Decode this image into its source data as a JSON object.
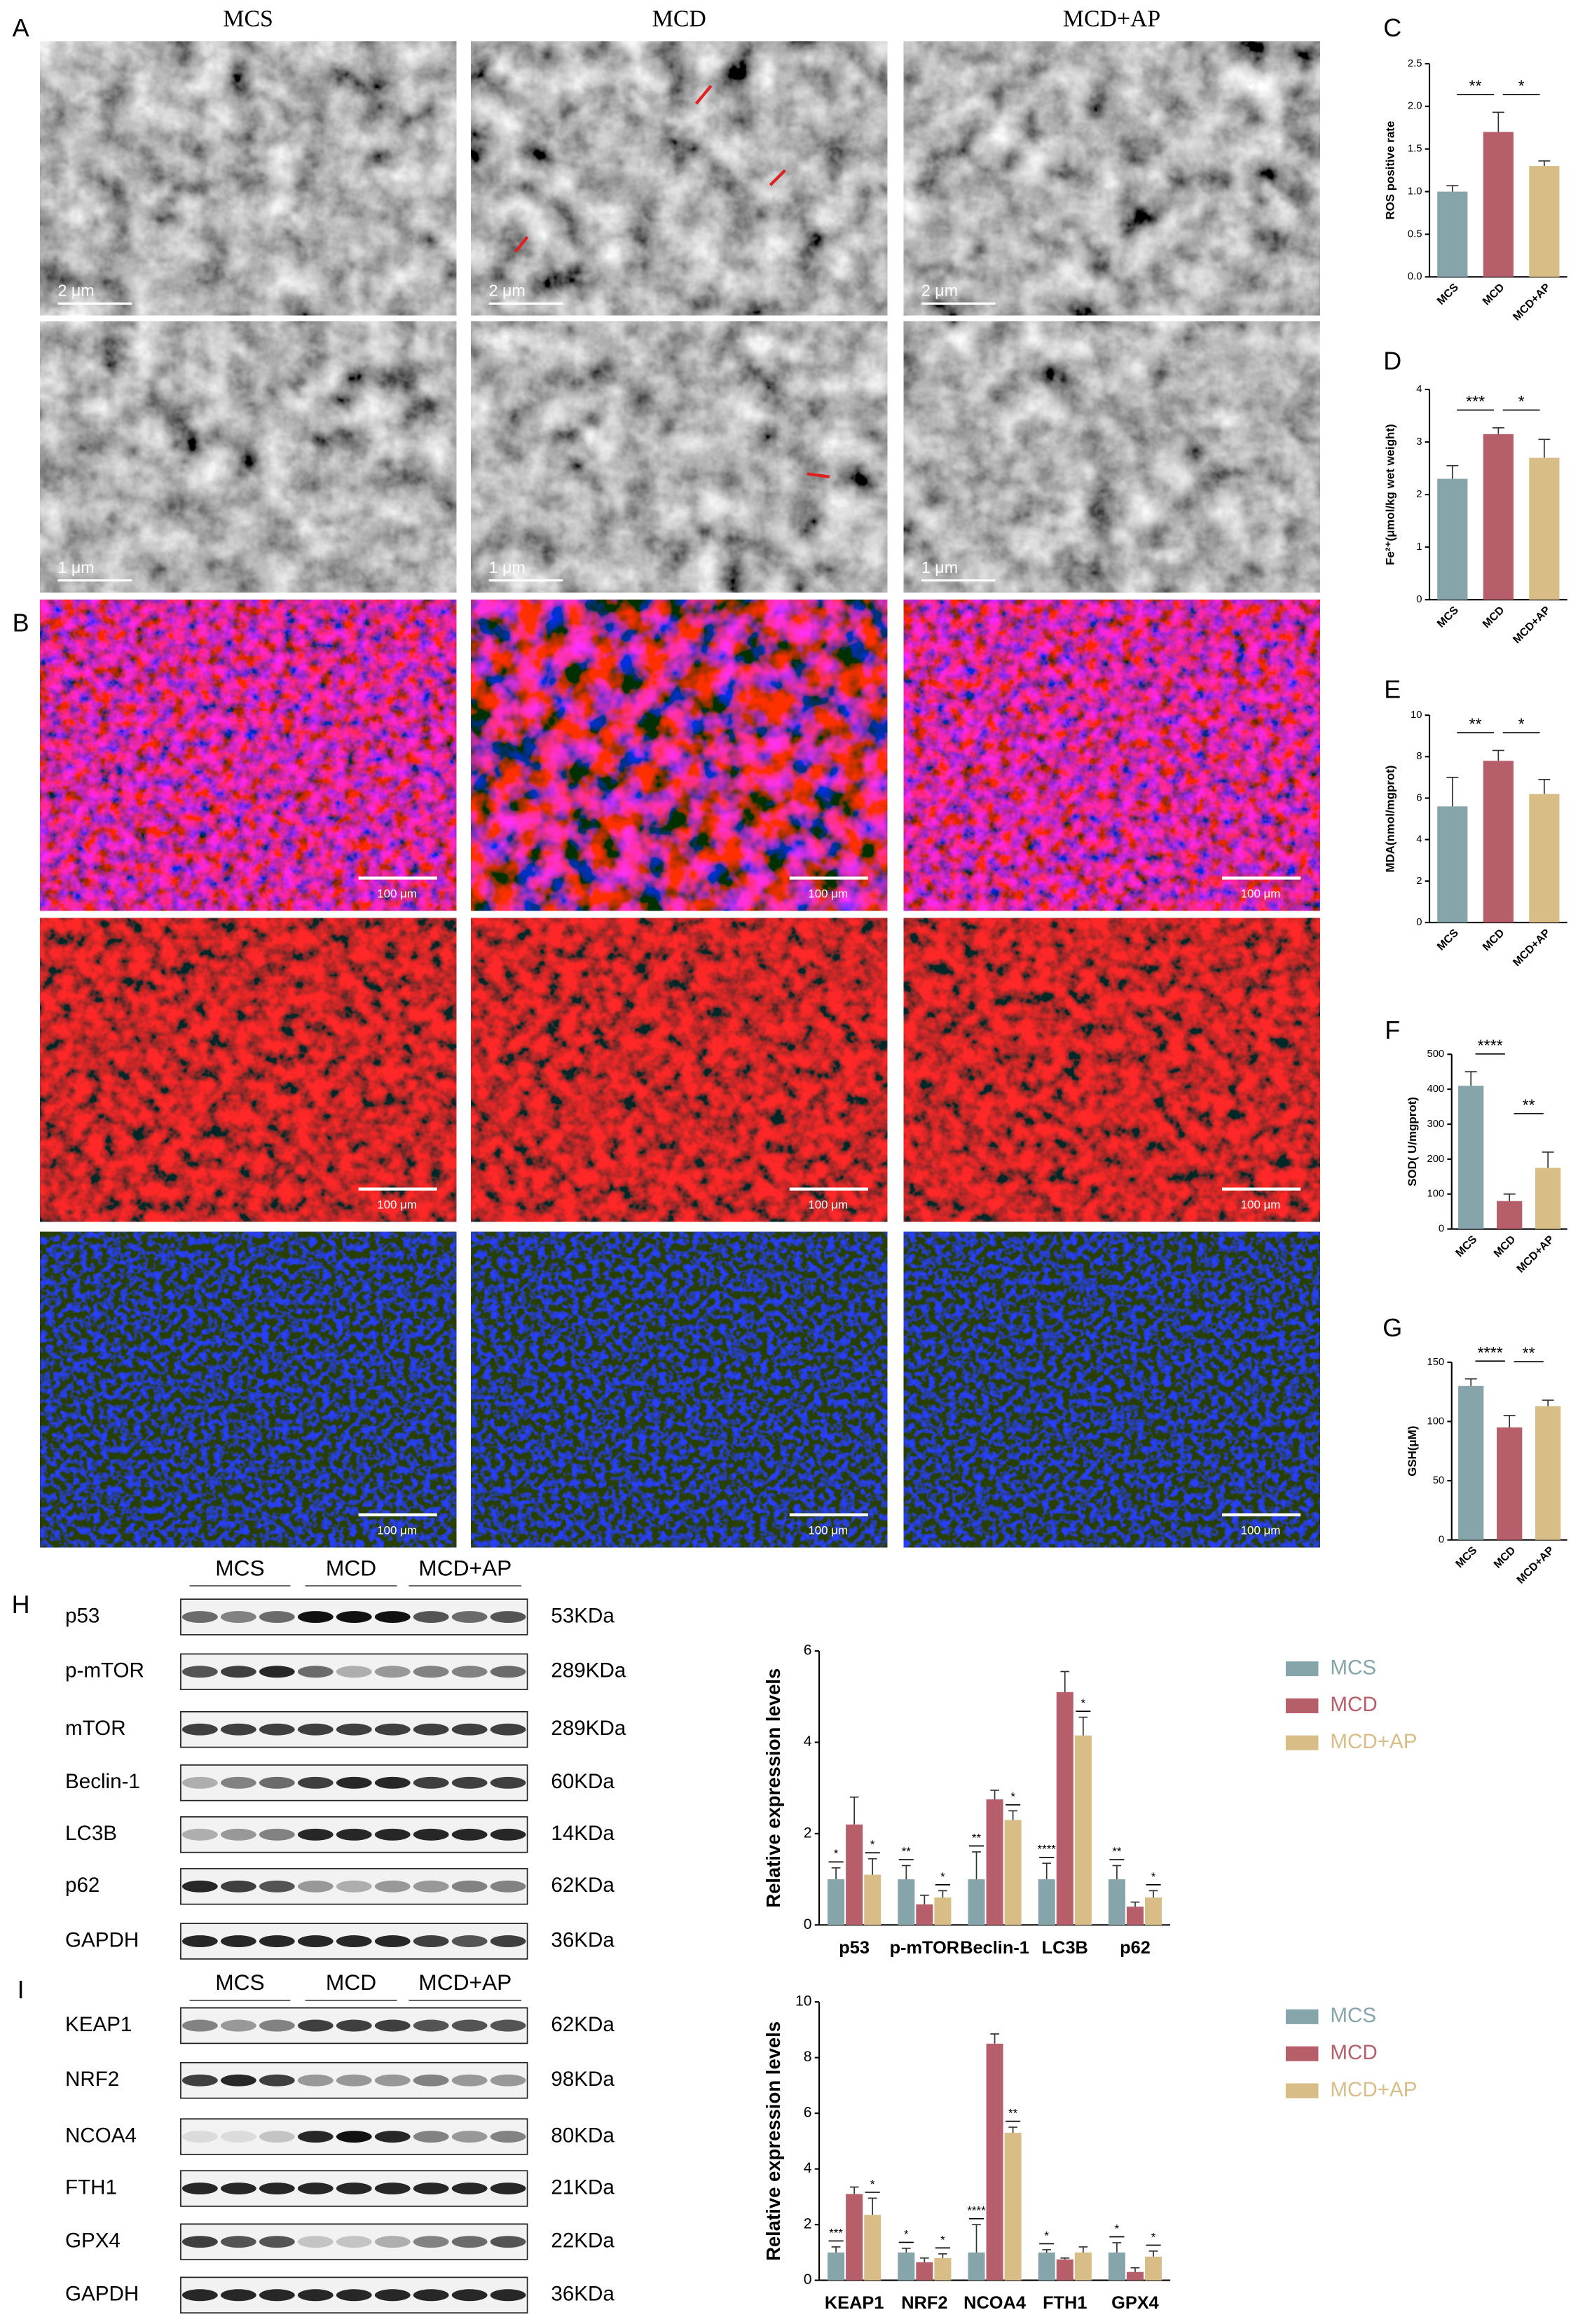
{
  "panel_labels": {
    "A": "A",
    "B": "B",
    "C": "C",
    "D": "D",
    "E": "E",
    "F": "F",
    "G": "G",
    "H": "H",
    "I": "I"
  },
  "tem": {
    "columns": [
      "MCS",
      "MCD",
      "MCD+AP"
    ],
    "scale_bars": [
      "2 μm",
      "1 μm"
    ]
  },
  "fluorescence": {
    "scale_bar": "100 μm"
  },
  "blots": [
    {
      "groups": [
        "MCS",
        "MCD",
        "MCD+AP"
      ],
      "rows": [
        {
          "protein": "p53",
          "size": "53KDa"
        },
        {
          "protein": "p-mTOR",
          "size": "289KDa"
        },
        {
          "protein": "mTOR",
          "size": "289KDa"
        },
        {
          "protein": "Beclin-1",
          "size": "60KDa"
        },
        {
          "protein": "LC3B",
          "size": "14KDa"
        },
        {
          "protein": "p62",
          "size": "62KDa"
        },
        {
          "protein": "GAPDH",
          "size": "36KDa"
        }
      ]
    },
    {
      "groups": [
        "MCS",
        "MCD",
        "MCD+AP"
      ],
      "rows": [
        {
          "protein": "KEAP1",
          "size": "62KDa"
        },
        {
          "protein": "NRF2",
          "size": "98KDa"
        },
        {
          "protein": "NCOA4",
          "size": "80KDa"
        },
        {
          "protein": "FTH1",
          "size": "21KDa"
        },
        {
          "protein": "GPX4",
          "size": "22KDa"
        },
        {
          "protein": "GAPDH",
          "size": "36KDa"
        }
      ]
    }
  ],
  "chart_data": [
    {
      "type": "bar",
      "y_label": "ROS positive rate",
      "categories": [
        "MCS",
        "MCD",
        "MCD+AP"
      ],
      "values": [
        1.0,
        1.7,
        1.3
      ],
      "errors": [
        0.07,
        0.23,
        0.06
      ],
      "colors": [
        "#86a5ab",
        "#b65e6a",
        "#d9bd86"
      ],
      "ylim": [
        0,
        2.5
      ],
      "yticks": [
        {
          "value": 0,
          "label": "0.0"
        },
        {
          "value": 0.5,
          "label": "0.5"
        },
        {
          "value": 1,
          "label": "1.0"
        },
        {
          "value": 1.5,
          "label": "1.5"
        },
        {
          "value": 2,
          "label": "2.0"
        },
        {
          "value": 2.5,
          "label": "2.5"
        }
      ],
      "significance": [
        "**",
        "*"
      ]
    },
    {
      "type": "bar",
      "y_label": "Fe²⁺(μmol/kg wet weight)",
      "categories": [
        "MCS",
        "MCD",
        "MCD+AP"
      ],
      "values": [
        2.3,
        3.15,
        2.7
      ],
      "errors": [
        0.25,
        0.12,
        0.35
      ],
      "colors": [
        "#86a5ab",
        "#b65e6a",
        "#d9bd86"
      ],
      "ylim": [
        0,
        4
      ],
      "yticks": [
        0,
        1,
        2,
        3,
        4
      ],
      "significance": [
        "***",
        "*"
      ]
    },
    {
      "type": "bar",
      "y_label": "MDA(nmol/mgprot)",
      "categories": [
        "MCS",
        "MCD",
        "MCD+AP"
      ],
      "values": [
        5.6,
        7.8,
        6.2
      ],
      "errors": [
        1.4,
        0.5,
        0.7
      ],
      "colors": [
        "#86a5ab",
        "#b65e6a",
        "#d9bd86"
      ],
      "ylim": [
        0,
        10
      ],
      "yticks": [
        0,
        2,
        4,
        6,
        8,
        10
      ],
      "significance": [
        "**",
        "*"
      ]
    },
    {
      "type": "bar",
      "y_label": "SOD( U/mgprot)",
      "categories": [
        "MCS",
        "MCD",
        "MCD+AP"
      ],
      "values": [
        410,
        80,
        175
      ],
      "errors": [
        40,
        20,
        45
      ],
      "colors": [
        "#86a5ab",
        "#b65e6a",
        "#d9bd86"
      ],
      "ylim": [
        0,
        500
      ],
      "yticks": [
        0,
        100,
        200,
        300,
        400,
        500
      ],
      "significance": [
        "****",
        "**"
      ]
    },
    {
      "type": "bar",
      "y_label": "GSH(μM)",
      "categories": [
        "MCS",
        "MCD",
        "MCD+AP"
      ],
      "values": [
        130,
        95,
        113
      ],
      "errors": [
        6,
        10,
        5
      ],
      "colors": [
        "#86a5ab",
        "#b65e6a",
        "#d9bd86"
      ],
      "ylim": [
        0,
        150
      ],
      "yticks": [
        0,
        50,
        100,
        150
      ],
      "significance": [
        "****",
        "**"
      ]
    },
    {
      "type": "grouped_bar",
      "y_label": "Relative expression levels",
      "categories": [
        "p53",
        "p-mTOR",
        "Beclin-1",
        "LC3B",
        "p62"
      ],
      "ylim": [
        0,
        6
      ],
      "yticks": [
        0,
        2,
        4,
        6
      ],
      "series": [
        {
          "name": "MCS",
          "color": "#86a5ab",
          "values": [
            1,
            1,
            1,
            1,
            1
          ],
          "errors": [
            0.25,
            0.3,
            0.6,
            0.35,
            0.3
          ],
          "significance": [
            "*",
            "**",
            "**",
            "****",
            "**"
          ]
        },
        {
          "name": "MCD",
          "color": "#b65e6a",
          "values": [
            2.2,
            0.45,
            2.75,
            5.1,
            0.4
          ],
          "errors": [
            0.6,
            0.2,
            0.2,
            0.45,
            0.1
          ]
        },
        {
          "name": "MCD+AP",
          "color": "#d9bd86",
          "values": [
            1.1,
            0.6,
            2.3,
            4.15,
            0.6
          ],
          "errors": [
            0.35,
            0.15,
            0.2,
            0.4,
            0.15
          ],
          "significance": [
            "*",
            "*",
            "*",
            "*",
            "*"
          ]
        }
      ]
    },
    {
      "type": "grouped_bar",
      "y_label": "Relative expression levels",
      "categories": [
        "KEAP1",
        "NRF2",
        "NCOA4",
        "FTH1",
        "GPX4"
      ],
      "ylim": [
        0,
        10
      ],
      "yticks": [
        0,
        2,
        4,
        6,
        8,
        10
      ],
      "series": [
        {
          "name": "MCS",
          "color": "#86a5ab",
          "values": [
            1,
            1,
            1,
            1,
            1
          ],
          "errors": [
            0.2,
            0.15,
            1.0,
            0.1,
            0.35
          ],
          "significance": [
            "***",
            "*",
            "****",
            "*",
            "*"
          ]
        },
        {
          "name": "MCD",
          "color": "#b65e6a",
          "values": [
            3.1,
            0.65,
            8.5,
            0.75,
            0.3
          ],
          "errors": [
            0.25,
            0.15,
            0.35,
            0.05,
            0.15
          ]
        },
        {
          "name": "MCD+AP",
          "color": "#d9bd86",
          "values": [
            2.35,
            0.8,
            5.3,
            1.0,
            0.85
          ],
          "errors": [
            0.6,
            0.15,
            0.2,
            0.2,
            0.2
          ],
          "significance": [
            "*",
            "*",
            "**",
            null,
            "*"
          ]
        }
      ]
    }
  ]
}
